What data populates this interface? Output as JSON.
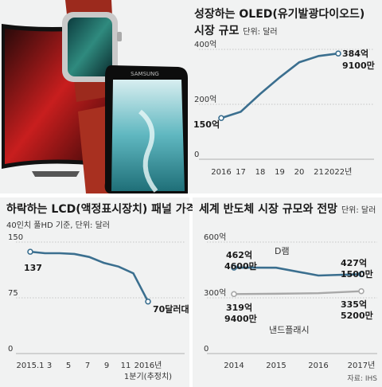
{
  "colors": {
    "line": "#3b6f8f",
    "secondary_line": "#a8a8a8",
    "grid": "#9a9a9a",
    "panel_bg": "#f1f2f2"
  },
  "photo": {
    "icons": [
      "tv-icon",
      "smartwatch-icon",
      "smartphone-icon"
    ],
    "phone_brand": "SAMSUNG"
  },
  "chart_data": [
    {
      "type": "line",
      "title": "성장하는 OLED(유기발광다이오드)",
      "subtitle": "시장 규모",
      "unit": "단위: 달러",
      "ytick_labels": [
        "400억",
        "200억",
        "0"
      ],
      "yticks": [
        400,
        200,
        0
      ],
      "ylim": [
        0,
        400
      ],
      "x_labels": [
        "2016",
        "17",
        "18",
        "19",
        "20",
        "21",
        "2022년"
      ],
      "x": [
        2016,
        2017,
        2018,
        2019,
        2020,
        2021,
        2022
      ],
      "series": [
        {
          "values": [
            150,
            173,
            238,
            298,
            353,
            376,
            384.9
          ]
        }
      ],
      "start_label": "150억",
      "end_label": [
        "384억",
        "9100만"
      ]
    },
    {
      "type": "line",
      "title": "하락하는 LCD(액정표시장치) 패널 가격",
      "subtitle": "40인치 풀HD 기준, 단위: 달러",
      "ytick_labels": [
        "150",
        "75",
        "0"
      ],
      "yticks": [
        150,
        75,
        0
      ],
      "ylim": [
        0,
        150
      ],
      "x_labels": [
        "2015.1",
        "3",
        "5",
        "7",
        "9",
        "11",
        "2016년\n1분기(추정치)"
      ],
      "x_label_lines": [
        "2015.1",
        "3",
        "5",
        "7",
        "9",
        "11",
        "2016년",
        "1분기(추정치)"
      ],
      "series": [
        {
          "values": [
            137,
            135,
            135,
            134,
            130,
            122,
            117,
            108,
            70
          ]
        }
      ],
      "start_label": "137",
      "end_label": "70달러대"
    },
    {
      "type": "line",
      "title": "세계 반도체 시장 규모와 전망",
      "unit": "단위: 달러",
      "ytick_labels": [
        "600억",
        "300억",
        "0"
      ],
      "yticks": [
        600,
        300,
        0
      ],
      "ylim": [
        0,
        600
      ],
      "x_labels": [
        "2014",
        "2015",
        "2016",
        "2017년"
      ],
      "x": [
        2014,
        2015,
        2016,
        2017
      ],
      "series": [
        {
          "name": "D램",
          "values": [
            462.46,
            462,
            420,
            427.15
          ],
          "start_label": [
            "462억",
            "4600만"
          ],
          "end_label": [
            "427억",
            "1500만"
          ]
        },
        {
          "name": "낸드플래시",
          "values": [
            319.94,
            322,
            325,
            335.52
          ],
          "start_label": [
            "319억",
            "9400만"
          ],
          "end_label": [
            "335억",
            "5200만"
          ]
        }
      ],
      "source": "자료: IHS"
    }
  ]
}
